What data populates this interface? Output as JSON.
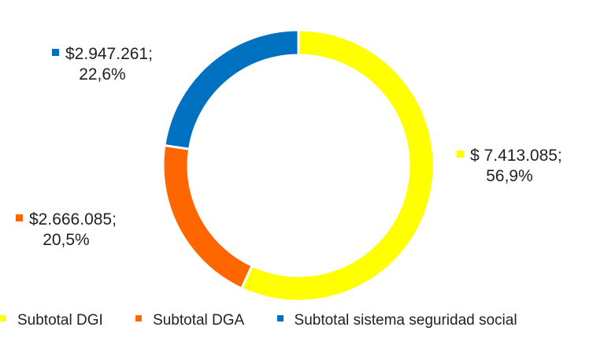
{
  "chart_data": {
    "type": "pie",
    "donut": true,
    "series": [
      {
        "name": "Subtotal DGI",
        "value": 7413085,
        "percent": 56.9,
        "label_value": "$ 7.413.085;",
        "label_percent": "56,9%",
        "color": "#FFFF00"
      },
      {
        "name": "Subtotal DGA",
        "value": 2666085,
        "percent": 20.5,
        "label_value": "$2.666.085;",
        "label_percent": "20,5%",
        "color": "#FF6600"
      },
      {
        "name": "Subtotal sistema seguridad social",
        "value": 2947261,
        "percent": 22.6,
        "label_value": "$2.947.261;",
        "label_percent": "22,6%",
        "color": "#0070C0"
      }
    ],
    "legend_position": "bottom"
  }
}
